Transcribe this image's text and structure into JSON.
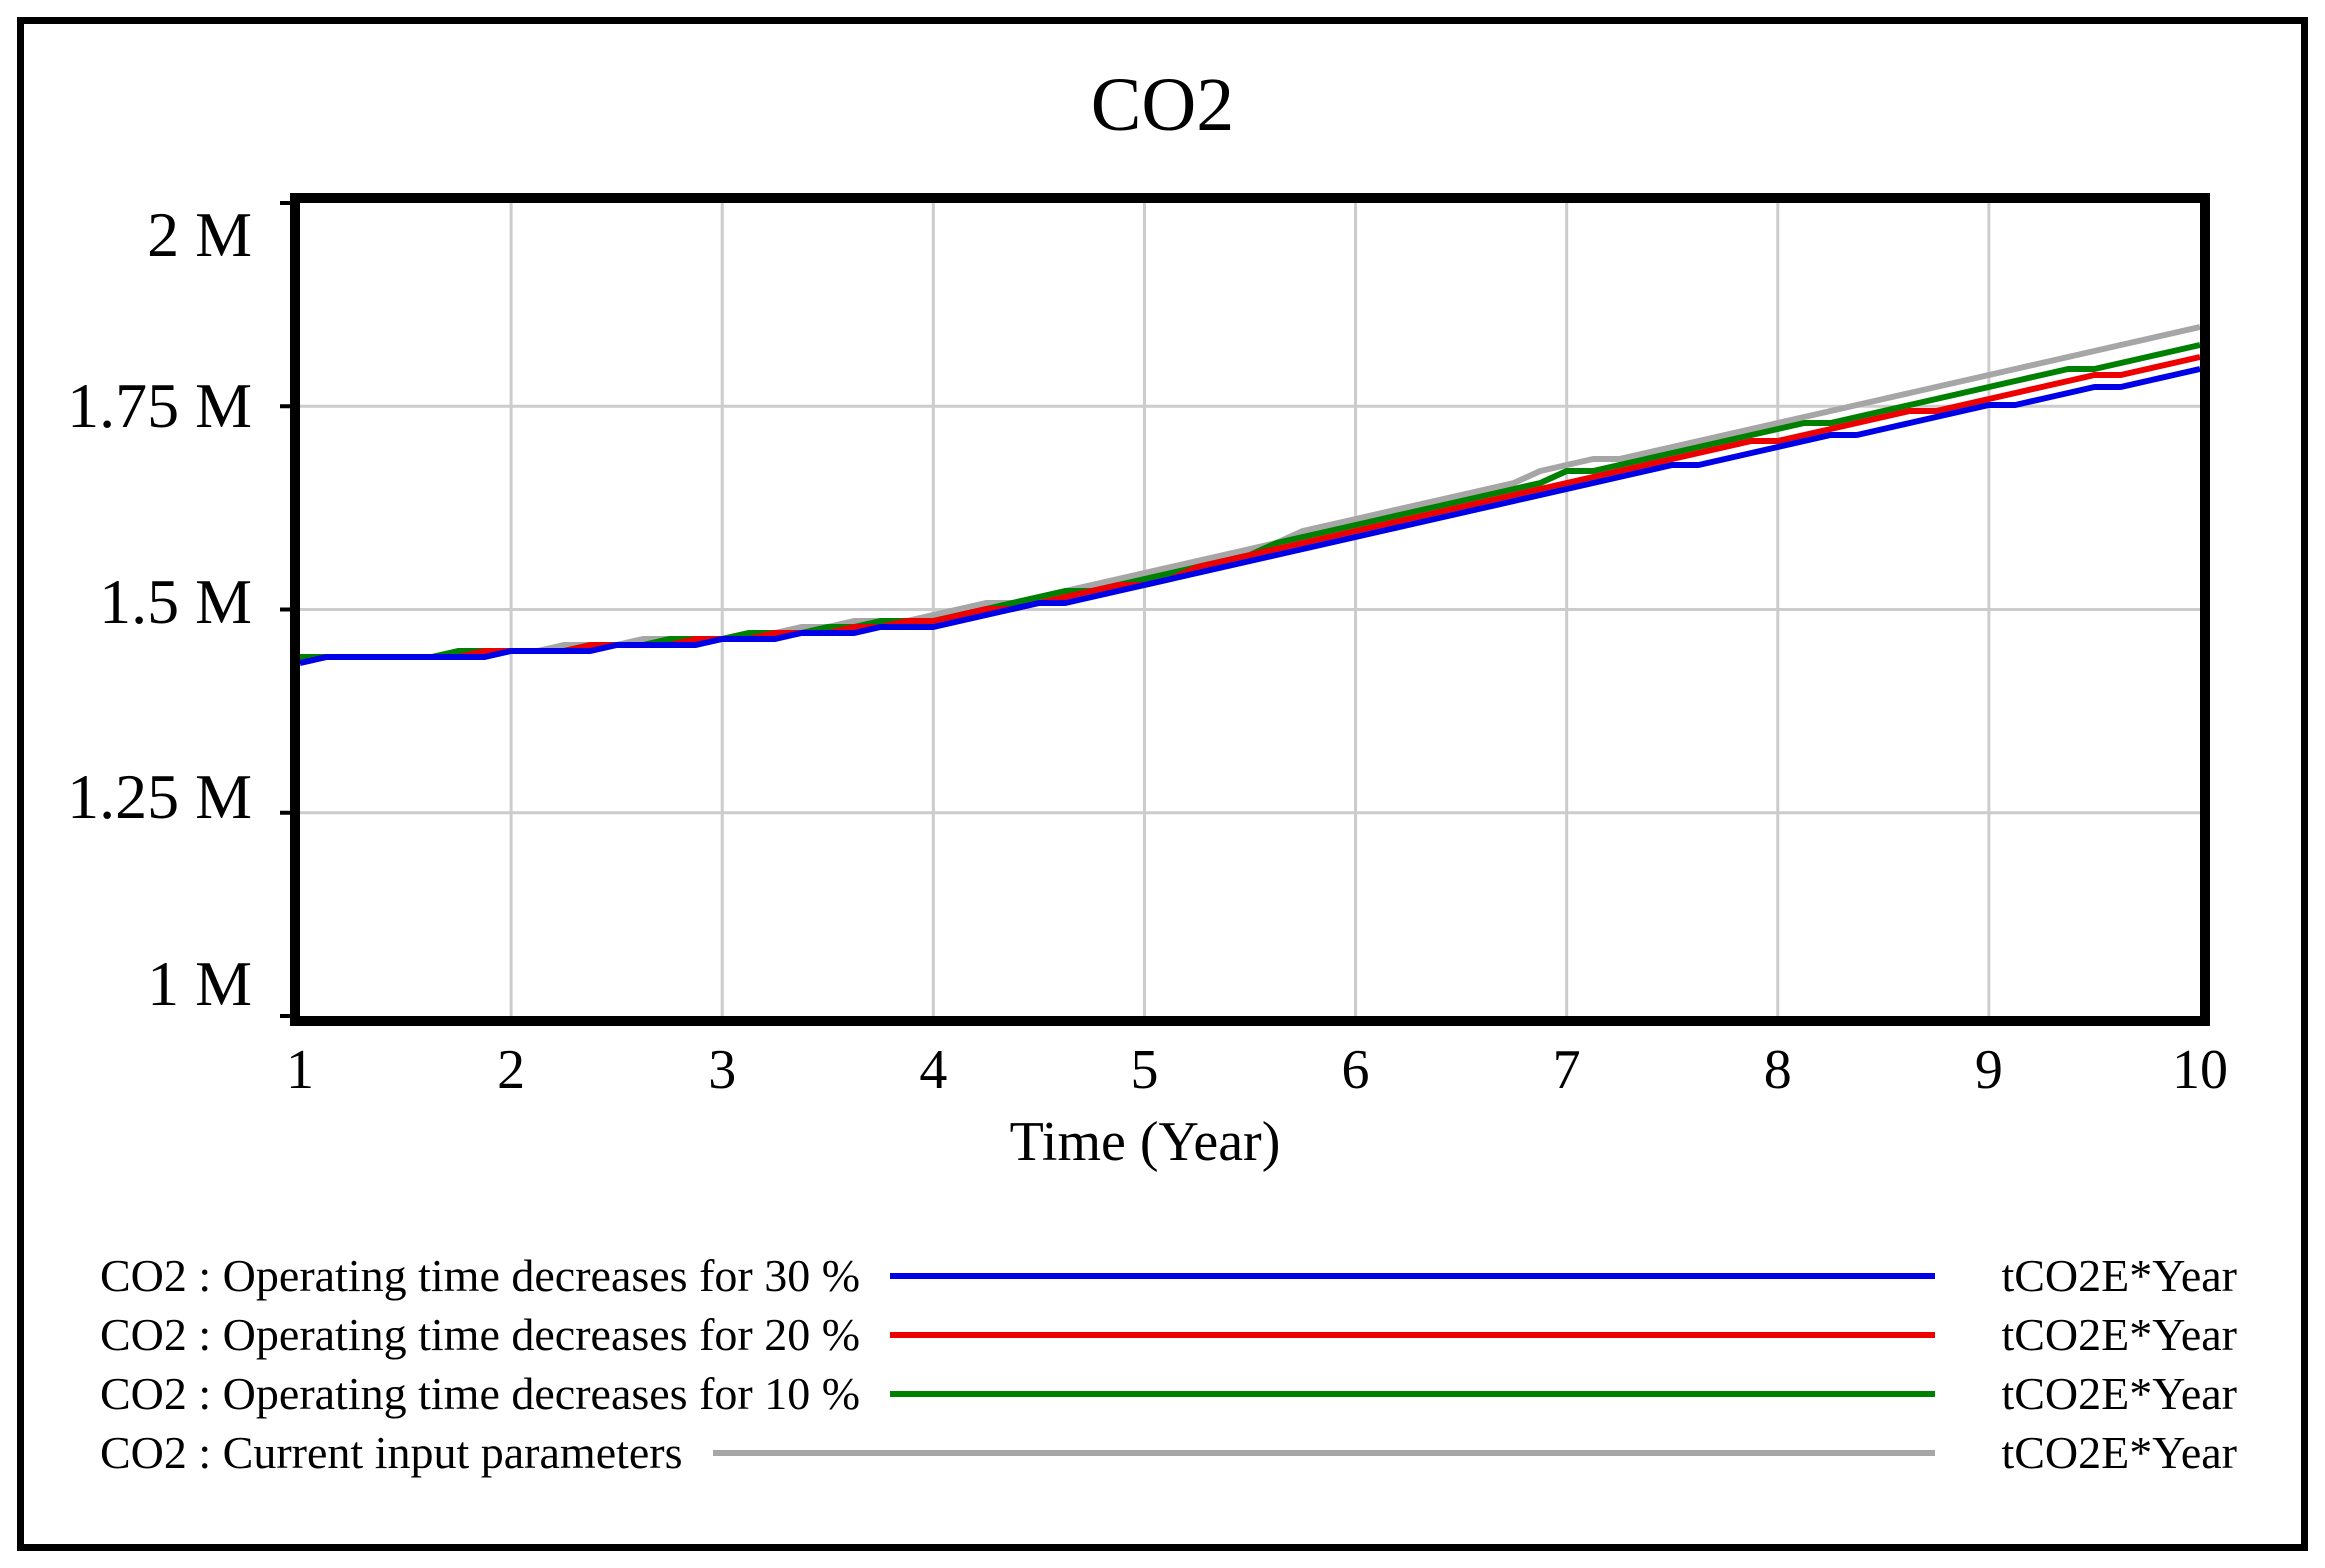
{
  "title": "CO2",
  "x_axis": {
    "title": "Time (Year)",
    "ticks": [
      "1",
      "2",
      "3",
      "4",
      "5",
      "6",
      "7",
      "8",
      "9",
      "10"
    ]
  },
  "y_axis": {
    "ticks": [
      "2 M",
      "1.75 M",
      "1.5 M",
      "1.25 M",
      "1 M"
    ]
  },
  "chart_data": {
    "type": "line",
    "title": "CO2",
    "xlabel": "Time (Year)",
    "ylabel": "",
    "x": [
      1,
      2,
      3,
      4,
      5,
      6,
      7,
      8,
      9,
      10
    ],
    "xlim": [
      1,
      10
    ],
    "ylim": [
      1000000,
      2000000
    ],
    "y_ticks": [
      2000000,
      1750000,
      1500000,
      1250000,
      1000000
    ],
    "grid": true,
    "legend_position": "bottom",
    "frame_color": "#000000",
    "gridline_color": "#cccccc",
    "series": [
      {
        "label": "CO2 : Operating time decreases for 30 %",
        "unit": "tCO2E*Year",
        "color": "#0000e8",
        "values": [
          1437000,
          1446000,
          1461000,
          1482000,
          1527000,
          1589000,
          1650000,
          1700000,
          1748000,
          1794000
        ]
      },
      {
        "label": "CO2 : Operating time decreases for 20 %",
        "unit": "tCO2E*Year",
        "color": "#ee0000",
        "values": [
          1437000,
          1447000,
          1463000,
          1486000,
          1533000,
          1596000,
          1659000,
          1710000,
          1760000,
          1811000
        ]
      },
      {
        "label": "CO2 : Operating time decreases for 10 %",
        "unit": "tCO2E*Year",
        "color": "#008000",
        "values": [
          1438000,
          1448000,
          1465000,
          1489000,
          1538000,
          1603000,
          1667000,
          1720000,
          1772000,
          1827000
        ]
      },
      {
        "label": "CO2 : Current input parameters",
        "unit": "tCO2E*Year",
        "color": "#a6a6a6",
        "values": [
          1438000,
          1449000,
          1467000,
          1492000,
          1543000,
          1610000,
          1675000,
          1730000,
          1785000,
          1847000
        ]
      }
    ]
  }
}
